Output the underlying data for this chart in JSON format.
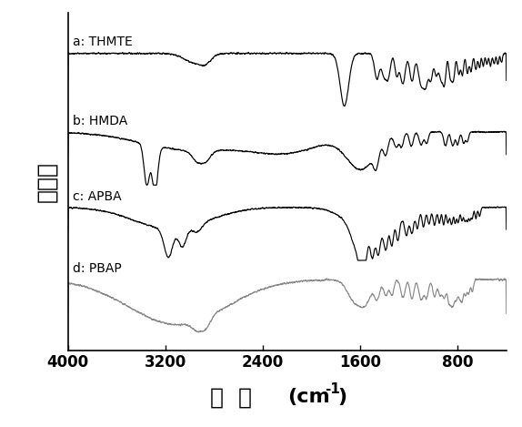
{
  "x_min": 400,
  "x_max": 4000,
  "ylabel": "透光率",
  "labels": [
    "a: THMTE",
    "b: HMDA",
    "c: APBA",
    "d: PBAP"
  ],
  "colors": [
    "#000000",
    "#000000",
    "#000000",
    "#888888"
  ],
  "offsets": [
    3.0,
    1.9,
    0.85,
    -0.15
  ],
  "background_color": "#ffffff",
  "tick_label_size": 12,
  "axis_label_size": 18,
  "xticks": [
    4000,
    3200,
    2400,
    1600,
    800
  ]
}
